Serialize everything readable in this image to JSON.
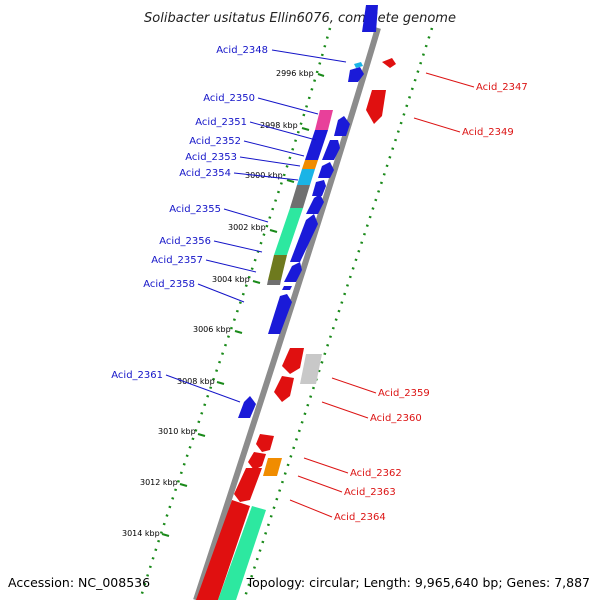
{
  "title": "Solibacter usitatus Ellin6076, complete genome",
  "footer": {
    "accession": "Accession: NC_008536",
    "summary": "Topology: circular; Length: 9,965,640 bp; Genes: 7,887"
  },
  "colors": {
    "backbone": "#8c8c8c",
    "tick_dots": "#1a8a1a",
    "forward_label": "#1414c8",
    "reverse_label": "#dc1414",
    "forward_arrow": "#1a1ad8",
    "reverse_arrow": "#e01010",
    "pink": "#e8409a",
    "orange": "#f08c00",
    "cyan": "#1ab4e6",
    "gray": "#707070",
    "mint": "#2de8a0",
    "olive": "#6e7a1e",
    "light_gray": "#c8c8c8"
  },
  "ticks": [
    {
      "label": "2996 kbp"
    },
    {
      "label": "2998 kbp"
    },
    {
      "label": "3000 kbp"
    },
    {
      "label": "3002 kbp"
    },
    {
      "label": "3004 kbp"
    },
    {
      "label": "3006 kbp"
    },
    {
      "label": "3008 kbp"
    },
    {
      "label": "3010 kbp"
    },
    {
      "label": "3012 kbp"
    },
    {
      "label": "3014 kbp"
    }
  ],
  "forward_genes": [
    {
      "label": "Acid_2348"
    },
    {
      "label": "Acid_2350"
    },
    {
      "label": "Acid_2351"
    },
    {
      "label": "Acid_2352"
    },
    {
      "label": "Acid_2353"
    },
    {
      "label": "Acid_2354"
    },
    {
      "label": "Acid_2355"
    },
    {
      "label": "Acid_2356"
    },
    {
      "label": "Acid_2357"
    },
    {
      "label": "Acid_2358"
    },
    {
      "label": "Acid_2361"
    }
  ],
  "reverse_genes": [
    {
      "label": "Acid_2347"
    },
    {
      "label": "Acid_2349"
    },
    {
      "label": "Acid_2359"
    },
    {
      "label": "Acid_2360"
    },
    {
      "label": "Acid_2362"
    },
    {
      "label": "Acid_2363"
    },
    {
      "label": "Acid_2364"
    }
  ]
}
